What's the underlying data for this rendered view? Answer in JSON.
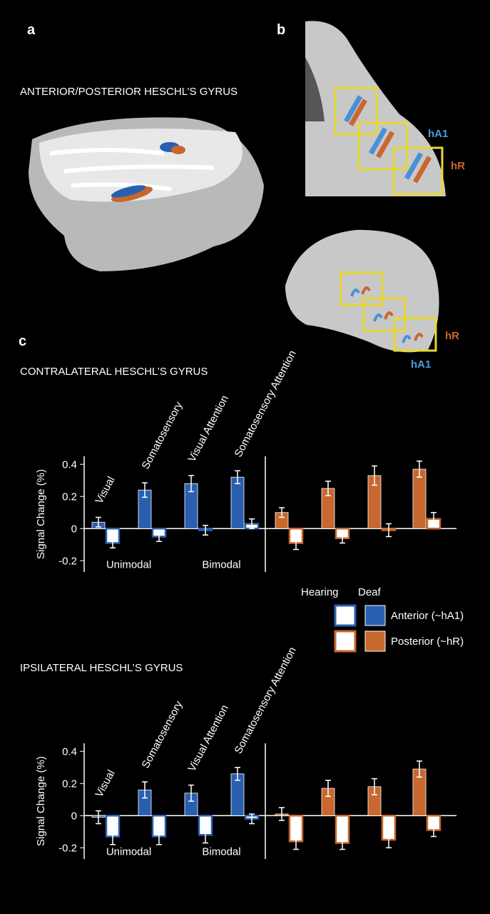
{
  "panel_a": {
    "label": "a",
    "title": "ANTERIOR/POSTERIOR HESCHL’S GYRUS"
  },
  "panel_b": {
    "label": "b",
    "axial_labels": [
      "hA1",
      "hR"
    ],
    "sagittal_labels": [
      "hR",
      "hA1"
    ]
  },
  "panel_c": {
    "label": "c"
  },
  "legend": {
    "columns": [
      "Hearing",
      "Deaf"
    ],
    "rows": [
      {
        "label": "Anterior (~hA1)",
        "color": "#2a5fb0"
      },
      {
        "label": "Posterior (~hR)",
        "color": "#c8672e"
      }
    ]
  },
  "chart_data": [
    {
      "type": "bar",
      "title": "CONTRALATERAL HESCHL’S GYRUS",
      "y_label": "Signal Change (%)",
      "categories": [
        "Visual",
        "Somatosensory",
        "Visual Attention",
        "Somatosensory Attention"
      ],
      "group_labels": [
        "Unimodal",
        "Bimodal"
      ],
      "ylim": [
        -0.27,
        0.45
      ],
      "yticks": [
        -0.2,
        0,
        0.2,
        0.4
      ],
      "anterior": {
        "deaf": {
          "values": [
            0.04,
            0.24,
            0.28,
            0.32
          ],
          "errors": [
            0.03,
            0.045,
            0.05,
            0.04
          ]
        },
        "hearing": {
          "values": [
            -0.09,
            -0.05,
            -0.01,
            0.03
          ],
          "errors": [
            0.03,
            0.03,
            0.03,
            0.03
          ]
        }
      },
      "posterior": {
        "deaf": {
          "values": [
            0.1,
            0.25,
            0.33,
            0.37
          ],
          "errors": [
            0.03,
            0.045,
            0.06,
            0.05
          ]
        },
        "hearing": {
          "values": [
            -0.09,
            -0.06,
            -0.01,
            0.06
          ],
          "errors": [
            0.04,
            0.03,
            0.04,
            0.04
          ]
        }
      }
    },
    {
      "type": "bar",
      "title": "IPSILATERAL HESCHL’S GYRUS",
      "y_label": "Signal Change (%)",
      "categories": [
        "Visual",
        "Somatosensory",
        "Visual Attention",
        "Somatosensory Attention"
      ],
      "group_labels": [
        "Unimodal",
        "Bimodal"
      ],
      "ylim": [
        -0.27,
        0.45
      ],
      "yticks": [
        -0.2,
        0,
        0.2,
        0.4
      ],
      "anterior": {
        "deaf": {
          "values": [
            -0.01,
            0.16,
            0.14,
            0.26
          ],
          "errors": [
            0.04,
            0.05,
            0.05,
            0.04
          ]
        },
        "hearing": {
          "values": [
            -0.13,
            -0.13,
            -0.12,
            -0.02
          ],
          "errors": [
            0.05,
            0.05,
            0.05,
            0.03
          ]
        }
      },
      "posterior": {
        "deaf": {
          "values": [
            0.01,
            0.17,
            0.18,
            0.29
          ],
          "errors": [
            0.04,
            0.05,
            0.05,
            0.05
          ]
        },
        "hearing": {
          "values": [
            -0.16,
            -0.17,
            -0.15,
            -0.09
          ],
          "errors": [
            0.05,
            0.04,
            0.05,
            0.04
          ]
        }
      }
    }
  ]
}
